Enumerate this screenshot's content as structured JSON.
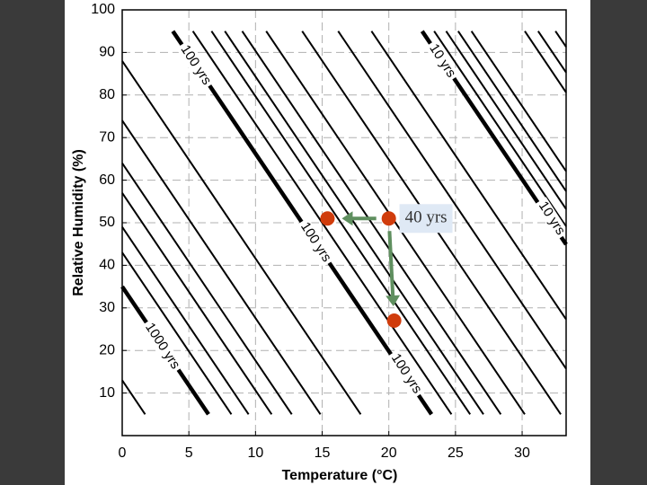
{
  "chart_data": {
    "type": "line",
    "xlabel": "Temperature (°C)",
    "ylabel": "Relative Humidity (%)",
    "xlim": [
      0,
      33.3
    ],
    "ylim": [
      0,
      100
    ],
    "xticks": [
      0,
      5,
      10,
      15,
      20,
      25,
      30
    ],
    "yticks": [
      10,
      20,
      30,
      40,
      50,
      60,
      70,
      80,
      90,
      100
    ],
    "grid": true,
    "color": "#000000",
    "series": [
      {
        "x": [
          0,
          1.72
        ],
        "values": [
          13,
          5
        ]
      },
      {
        "x": [
          0,
          6.47
        ],
        "values": [
          35,
          5
        ],
        "bold": true
      },
      {
        "x": [
          0,
          8.19
        ],
        "values": [
          43,
          5
        ]
      },
      {
        "x": [
          0,
          9.48
        ],
        "values": [
          49,
          5
        ]
      },
      {
        "x": [
          0,
          11.21
        ],
        "values": [
          57,
          5
        ]
      },
      {
        "x": [
          0,
          12.72
        ],
        "values": [
          64,
          5
        ]
      },
      {
        "x": [
          0,
          14.87
        ],
        "values": [
          74,
          5
        ]
      },
      {
        "x": [
          0,
          17.89
        ],
        "values": [
          88,
          5
        ]
      },
      {
        "x": [
          3.8,
          23.2
        ],
        "values": [
          95,
          5
        ],
        "bold": true
      },
      {
        "x": [
          5.3,
          24.7
        ],
        "values": [
          95,
          5
        ]
      },
      {
        "x": [
          6.7,
          26.1
        ],
        "values": [
          95,
          5
        ]
      },
      {
        "x": [
          7.7,
          27.1
        ],
        "values": [
          95,
          5
        ]
      },
      {
        "x": [
          9.0,
          28.4
        ],
        "values": [
          95,
          5
        ]
      },
      {
        "x": [
          10.8,
          30.2
        ],
        "values": [
          95,
          5
        ]
      },
      {
        "x": [
          13.5,
          32.9
        ],
        "values": [
          95,
          5
        ]
      },
      {
        "x": [
          16.2,
          33.3
        ],
        "values": [
          95,
          15.7
        ]
      },
      {
        "x": [
          18.7,
          33.3
        ],
        "values": [
          95,
          27.3
        ]
      },
      {
        "x": [
          22.5,
          33.3
        ],
        "values": [
          95,
          44.9
        ],
        "bold": true
      },
      {
        "x": [
          23.4,
          33.3
        ],
        "values": [
          95,
          49.1
        ]
      },
      {
        "x": [
          24.3,
          33.3
        ],
        "values": [
          95,
          53.2
        ]
      },
      {
        "x": [
          25.2,
          33.3
        ],
        "values": [
          95,
          57.4
        ]
      },
      {
        "x": [
          26.2,
          33.3
        ],
        "values": [
          95,
          62.1
        ]
      },
      {
        "x": [
          30.2,
          33.3
        ],
        "values": [
          95,
          80.6
        ]
      },
      {
        "x": [
          31.2,
          33.3
        ],
        "values": [
          95,
          85.3
        ]
      },
      {
        "x": [
          32.5,
          33.3
        ],
        "values": [
          95,
          91.3
        ]
      }
    ],
    "annotations": [
      {
        "text": "1000 yrs",
        "x": 3.0,
        "y": 21
      },
      {
        "text": "100 yrs",
        "x": 5.5,
        "y": 87
      },
      {
        "text": "100 yrs",
        "x": 14.5,
        "y": 45.4
      },
      {
        "text": "100 yrs",
        "x": 21.3,
        "y": 14.5
      },
      {
        "text": "10 yrs",
        "x": 24.0,
        "y": 88
      },
      {
        "text": "10 yrs",
        "x": 32.2,
        "y": 51
      }
    ],
    "points": {
      "x": [
        15.4,
        20.0,
        20.4
      ],
      "values": [
        51,
        51,
        27
      ],
      "color": "#d03c0c"
    },
    "callout": {
      "text": "40 yrs",
      "x": 20.8,
      "y": 51
    }
  }
}
